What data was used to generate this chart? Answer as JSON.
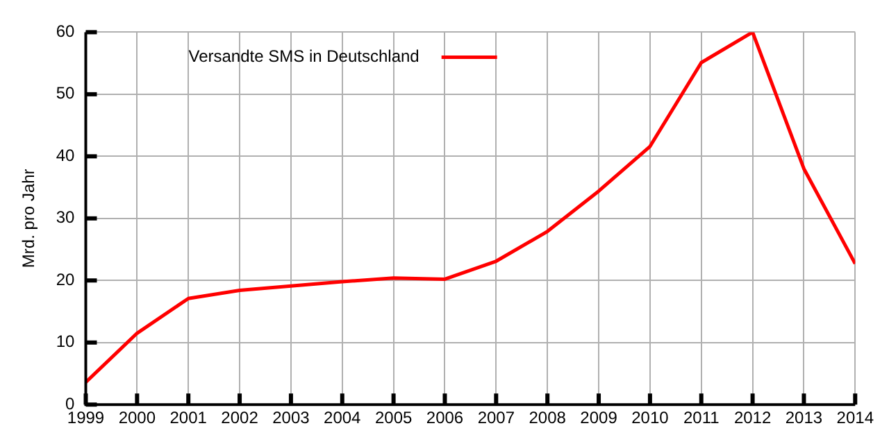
{
  "chart_data": {
    "type": "line",
    "ylabel": "Mrd. pro Jahr",
    "x": [
      1999,
      2000,
      2001,
      2002,
      2003,
      2004,
      2005,
      2006,
      2007,
      2008,
      2009,
      2010,
      2011,
      2012,
      2013,
      2014
    ],
    "series": [
      {
        "name": "Versandte SMS in Deutschland",
        "color": "#ff0000",
        "values": [
          3.6,
          11.5,
          17.1,
          18.4,
          19.1,
          19.8,
          20.4,
          20.2,
          23.1,
          27.9,
          34.4,
          41.6,
          55.1,
          60,
          38,
          22.7
        ]
      }
    ],
    "xlim": [
      1999,
      2014
    ],
    "xticks": [
      1999,
      2000,
      2001,
      2002,
      2003,
      2004,
      2005,
      2006,
      2007,
      2008,
      2009,
      2010,
      2011,
      2012,
      2013,
      2014
    ],
    "ylim": [
      0,
      60
    ],
    "yticks": [
      0,
      10,
      20,
      30,
      40,
      50,
      60
    ],
    "grid": true,
    "legend": "top left",
    "marker": "none",
    "line_style": "solid"
  }
}
